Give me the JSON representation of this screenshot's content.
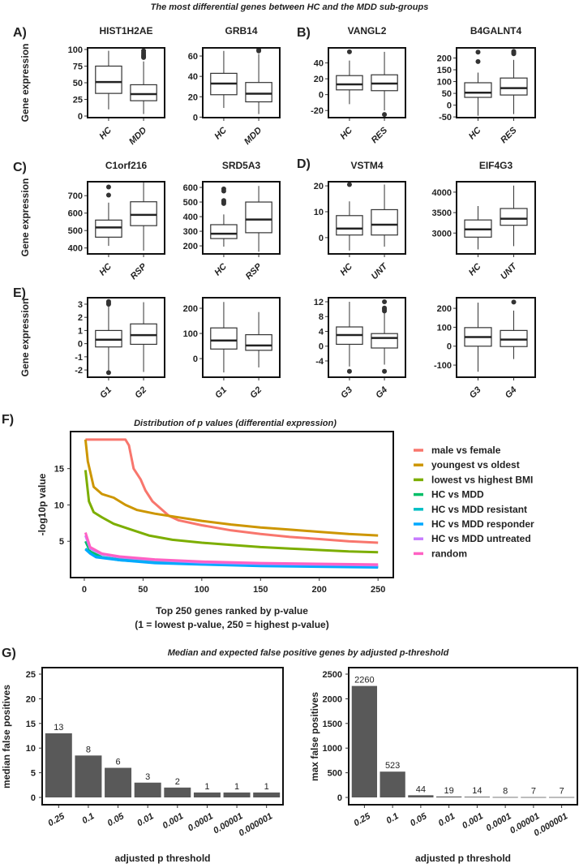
{
  "main_title": "The most differential genes between HC and the MDD sub-groups",
  "panel_labels": {
    "A": "A)",
    "B": "B)",
    "C": "C)",
    "D": "D)",
    "E": "E)",
    "F": "F)",
    "G": "G)"
  },
  "gene_ylabel": "Gene expression",
  "chart_data": [
    {
      "type": "boxplot",
      "panel": "A",
      "title": "HIST1H2AE",
      "ylim": [
        -2.4,
        102.4
      ],
      "yticks": [
        0,
        25,
        50,
        75,
        100
      ],
      "groups": [
        {
          "name": "HC",
          "stats": [
            10,
            34,
            51,
            75,
            98
          ],
          "outliers": []
        },
        {
          "name": "MDD",
          "stats": [
            3,
            23,
            33,
            47,
            82
          ],
          "outliers": [
            88,
            90,
            92,
            95,
            98
          ]
        }
      ]
    },
    {
      "type": "boxplot",
      "panel": "A",
      "title": "GRB14",
      "ylim": [
        -0.5,
        68
      ],
      "yticks": [
        0,
        20,
        40,
        60
      ],
      "groups": [
        {
          "name": "HC",
          "stats": [
            9,
            22,
            33,
            43,
            65
          ],
          "outliers": []
        },
        {
          "name": "MDD",
          "stats": [
            3,
            15,
            23,
            34,
            62
          ],
          "outliers": [
            65,
            66
          ]
        }
      ]
    },
    {
      "type": "boxplot",
      "panel": "B",
      "title": "VANGL2",
      "ylim": [
        -29,
        59
      ],
      "yticks": [
        -20,
        0,
        20,
        40
      ],
      "groups": [
        {
          "name": "HC",
          "stats": [
            -12,
            6,
            13,
            24,
            43
          ],
          "outliers": [
            54
          ]
        },
        {
          "name": "RES",
          "stats": [
            -20,
            5,
            14,
            25,
            54
          ],
          "outliers": [
            -25
          ]
        }
      ]
    },
    {
      "type": "boxplot",
      "panel": "B",
      "title": "B4GALNT4",
      "ylim": [
        -53,
        243
      ],
      "yticks": [
        -50,
        0,
        50,
        100,
        150,
        200
      ],
      "groups": [
        {
          "name": "HC",
          "stats": [
            -45,
            33,
            53,
            95,
            138
          ],
          "outliers": [
            185,
            225
          ]
        },
        {
          "name": "RES",
          "stats": [
            -38,
            43,
            72,
            115,
            192
          ],
          "outliers": [
            218,
            222,
            225,
            228
          ]
        }
      ]
    },
    {
      "type": "boxplot",
      "panel": "C",
      "title": "C1orf216",
      "ylim": [
        366,
        780
      ],
      "yticks": [
        400,
        500,
        600,
        700
      ],
      "groups": [
        {
          "name": "HC",
          "stats": [
            412,
            462,
            518,
            560,
            660
          ],
          "outliers": [
            703,
            750
          ]
        },
        {
          "name": "RSP",
          "stats": [
            385,
            528,
            590,
            665,
            775
          ],
          "outliers": []
        }
      ]
    },
    {
      "type": "boxplot",
      "panel": "C",
      "title": "SRD5A3",
      "ylim": [
        145,
        639
      ],
      "yticks": [
        200,
        300,
        400,
        500,
        600
      ],
      "groups": [
        {
          "name": "HC",
          "stats": [
            195,
            250,
            283,
            345,
            415
          ],
          "outliers": [
            490,
            500,
            510,
            575,
            590
          ]
        },
        {
          "name": "RSP",
          "stats": [
            160,
            290,
            380,
            500,
            610
          ],
          "outliers": []
        }
      ]
    },
    {
      "type": "boxplot",
      "panel": "D",
      "title": "VSTM4",
      "ylim": [
        -6.3,
        21.6
      ],
      "yticks": [
        0,
        10,
        20
      ],
      "groups": [
        {
          "name": "HC",
          "stats": [
            -5,
            1,
            3.5,
            8.5,
            14
          ],
          "outliers": [
            20.5
          ]
        },
        {
          "name": "UNT",
          "stats": [
            -3.5,
            1,
            5,
            10.8,
            20.5
          ],
          "outliers": []
        }
      ]
    },
    {
      "type": "boxplot",
      "panel": "D",
      "title": "EIF4G3",
      "ylim": [
        2490,
        4255
      ],
      "yticks": [
        3000,
        3500,
        4000
      ],
      "groups": [
        {
          "name": "HC",
          "stats": [
            2600,
            2900,
            3090,
            3320,
            3660
          ],
          "outliers": []
        },
        {
          "name": "UNT",
          "stats": [
            2680,
            3190,
            3350,
            3600,
            4160
          ],
          "outliers": []
        }
      ]
    },
    {
      "type": "boxplot",
      "panel": "E",
      "title": "",
      "ylim": [
        -2.55,
        3.49
      ],
      "yticks": [
        -2,
        -1,
        0,
        1,
        2,
        3
      ],
      "groups": [
        {
          "name": "G1",
          "stats": [
            -2.1,
            -0.25,
            0.3,
            1.0,
            2.9
          ],
          "outliers": [
            3.0,
            3.1,
            3.2,
            -2.2
          ]
        },
        {
          "name": "G2",
          "stats": [
            -2.15,
            -0.05,
            0.65,
            1.5,
            3.15
          ],
          "outliers": []
        }
      ]
    },
    {
      "type": "boxplot",
      "panel": "E",
      "title": "",
      "ylim": [
        -74,
        242
      ],
      "yticks": [
        0,
        100,
        200
      ],
      "groups": [
        {
          "name": "G1",
          "stats": [
            -55,
            38,
            72,
            122,
            225
          ],
          "outliers": []
        },
        {
          "name": "G2",
          "stats": [
            -35,
            33,
            52,
            95,
            185
          ],
          "outliers": []
        }
      ]
    },
    {
      "type": "boxplot",
      "panel": "E",
      "title": "",
      "ylim": [
        -8.4,
        13.1
      ],
      "yticks": [
        -4,
        0,
        4,
        8,
        12
      ],
      "groups": [
        {
          "name": "G3",
          "stats": [
            -5.5,
            0.5,
            3,
            5.2,
            12
          ],
          "outliers": [
            -6.8
          ]
        },
        {
          "name": "G4",
          "stats": [
            -5,
            -0.5,
            2.2,
            3.4,
            9
          ],
          "outliers": [
            9.5,
            10,
            10.3,
            12,
            -6.8
          ]
        }
      ]
    },
    {
      "type": "boxplot",
      "panel": "E",
      "title": "",
      "ylim": [
        -164,
        256
      ],
      "yticks": [
        -100,
        0,
        100,
        200
      ],
      "groups": [
        {
          "name": "G3",
          "stats": [
            -135,
            0,
            48,
            98,
            230
          ],
          "outliers": []
        },
        {
          "name": "G4",
          "stats": [
            -68,
            -2,
            35,
            83,
            188
          ],
          "outliers": [
            233
          ]
        }
      ]
    },
    {
      "type": "line",
      "panel": "F",
      "title": "Distribution of p values (differential expression)",
      "xlabel": "Top 250 genes ranked by p-value",
      "xlabel2": "(1 = lowest p-value, 250 = highest p-value)",
      "ylabel": "-log10p value",
      "xlim": [
        -11.7,
        263
      ],
      "ylim": [
        0,
        20.1
      ],
      "xticks": [
        0,
        50,
        100,
        150,
        200,
        250
      ],
      "yticks": [
        5,
        10,
        15
      ],
      "legend": "right",
      "series": [
        {
          "name": "male vs female",
          "color": "#F8766D",
          "points": [
            [
              1,
              19
            ],
            [
              35,
              19
            ],
            [
              38,
              18.2
            ],
            [
              42,
              15
            ],
            [
              48,
              13.5
            ],
            [
              52,
              12
            ],
            [
              58,
              10.5
            ],
            [
              65,
              9.5
            ],
            [
              72,
              8.5
            ],
            [
              80,
              7.9
            ],
            [
              100,
              7.2
            ],
            [
              125,
              6.5
            ],
            [
              150,
              6
            ],
            [
              175,
              5.6
            ],
            [
              200,
              5.3
            ],
            [
              225,
              5
            ],
            [
              250,
              4.8
            ]
          ]
        },
        {
          "name": "youngest vs oldest",
          "color": "#CD9600",
          "points": [
            [
              1,
              19
            ],
            [
              3,
              16
            ],
            [
              8,
              12.5
            ],
            [
              15,
              11.5
            ],
            [
              25,
              11
            ],
            [
              35,
              10
            ],
            [
              45,
              9.3
            ],
            [
              60,
              8.8
            ],
            [
              80,
              8.3
            ],
            [
              100,
              7.8
            ],
            [
              125,
              7.3
            ],
            [
              150,
              6.9
            ],
            [
              175,
              6.6
            ],
            [
              200,
              6.3
            ],
            [
              225,
              6
            ],
            [
              250,
              5.8
            ]
          ]
        },
        {
          "name": "lowest vs highest BMI",
          "color": "#7CAE00",
          "points": [
            [
              1,
              14.8
            ],
            [
              4,
              10.5
            ],
            [
              8,
              9
            ],
            [
              15,
              8.3
            ],
            [
              25,
              7.4
            ],
            [
              40,
              6.6
            ],
            [
              55,
              5.8
            ],
            [
              75,
              5.2
            ],
            [
              100,
              4.8
            ],
            [
              125,
              4.5
            ],
            [
              150,
              4.2
            ],
            [
              175,
              4
            ],
            [
              200,
              3.8
            ],
            [
              225,
              3.6
            ],
            [
              250,
              3.5
            ]
          ]
        },
        {
          "name": "HC vs MDD",
          "color": "#00BE67",
          "points": [
            [
              1,
              5
            ],
            [
              5,
              3.6
            ],
            [
              15,
              2.8
            ],
            [
              30,
              2.4
            ],
            [
              60,
              2.1
            ],
            [
              100,
              1.9
            ],
            [
              150,
              1.7
            ],
            [
              200,
              1.6
            ],
            [
              250,
              1.5
            ]
          ]
        },
        {
          "name": "HC vs MDD resistant",
          "color": "#00BFC4",
          "points": [
            [
              1,
              4
            ],
            [
              5,
              3.4
            ],
            [
              10,
              2.9
            ],
            [
              30,
              2.5
            ],
            [
              60,
              2.1
            ],
            [
              100,
              1.9
            ],
            [
              150,
              1.7
            ],
            [
              250,
              1.5
            ]
          ]
        },
        {
          "name": "HC vs MDD responder",
          "color": "#00A9FF",
          "points": [
            [
              1,
              3.9
            ],
            [
              5,
              3.3
            ],
            [
              10,
              2.8
            ],
            [
              30,
              2.4
            ],
            [
              60,
              2.0
            ],
            [
              100,
              1.8
            ],
            [
              150,
              1.6
            ],
            [
              250,
              1.4
            ]
          ]
        },
        {
          "name": "HC vs MDD untreated",
          "color": "#C77CFF",
          "points": [
            [
              1,
              5.8
            ],
            [
              5,
              4
            ],
            [
              15,
              3.2
            ],
            [
              30,
              2.8
            ],
            [
              60,
              2.4
            ],
            [
              100,
              2.1
            ],
            [
              150,
              1.9
            ],
            [
              250,
              1.7
            ]
          ]
        },
        {
          "name": "random",
          "color": "#FF61C3",
          "points": [
            [
              1,
              6.2
            ],
            [
              5,
              4.2
            ],
            [
              15,
              3.3
            ],
            [
              30,
              2.9
            ],
            [
              60,
              2.5
            ],
            [
              100,
              2.2
            ],
            [
              150,
              2.0
            ],
            [
              250,
              1.8
            ]
          ]
        }
      ]
    },
    {
      "type": "bar",
      "panel": "G",
      "title": "Median and expected false positive genes by adjusted p-threshold",
      "categories": [
        "0.25",
        "0.1",
        "0.05",
        "0.01",
        "0.001",
        "0.0001",
        "0.00001",
        "0.000001"
      ],
      "values": [
        13,
        8.5,
        6,
        3,
        2,
        1,
        1,
        1
      ],
      "labels": [
        "13",
        "8",
        "6",
        "3",
        "2",
        "1",
        "1",
        "1"
      ],
      "xlabel": "adjusted p threshold",
      "ylabel": "median false positives",
      "ylim": [
        0,
        25
      ],
      "yticks": [
        0,
        5,
        10,
        15,
        20,
        25
      ],
      "color": "#595959"
    },
    {
      "type": "bar",
      "panel": "G",
      "title": "",
      "categories": [
        "0.25",
        "0.1",
        "0.05",
        "0.01",
        "0.001",
        "0.0001",
        "0.00001",
        "0.000001"
      ],
      "values": [
        2260,
        523,
        44,
        19,
        14,
        8,
        7,
        7
      ],
      "labels": [
        "2260",
        "523",
        "44",
        "19",
        "14",
        "8",
        "7",
        "7"
      ],
      "xlabel": "adjusted p threshold",
      "ylabel": "max false positives",
      "ylim": [
        0,
        2500
      ],
      "yticks": [
        0,
        500,
        1000,
        1500,
        2000,
        2500
      ],
      "color": "#595959"
    }
  ]
}
